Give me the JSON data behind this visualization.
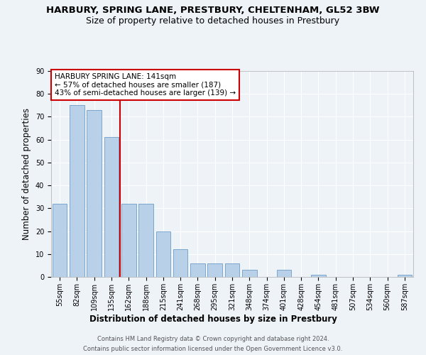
{
  "title": "HARBURY, SPRING LANE, PRESTBURY, CHELTENHAM, GL52 3BW",
  "subtitle": "Size of property relative to detached houses in Prestbury",
  "xlabel": "Distribution of detached houses by size in Prestbury",
  "ylabel": "Number of detached properties",
  "categories": [
    "55sqm",
    "82sqm",
    "109sqm",
    "135sqm",
    "162sqm",
    "188sqm",
    "215sqm",
    "241sqm",
    "268sqm",
    "295sqm",
    "321sqm",
    "348sqm",
    "374sqm",
    "401sqm",
    "428sqm",
    "454sqm",
    "481sqm",
    "507sqm",
    "534sqm",
    "560sqm",
    "587sqm"
  ],
  "values": [
    32,
    75,
    73,
    61,
    32,
    32,
    20,
    12,
    6,
    6,
    6,
    3,
    0,
    3,
    0,
    1,
    0,
    0,
    0,
    0,
    1
  ],
  "bar_color": "#b8d0e8",
  "bar_edge_color": "#5a8fc0",
  "vline_color": "#cc0000",
  "vline_x_index": 3.5,
  "annotation_line1": "HARBURY SPRING LANE: 141sqm",
  "annotation_line2": "← 57% of detached houses are smaller (187)",
  "annotation_line3": "43% of semi-detached houses are larger (139) →",
  "footnote1": "Contains HM Land Registry data © Crown copyright and database right 2024.",
  "footnote2": "Contains public sector information licensed under the Open Government Licence v3.0.",
  "ylim": [
    0,
    90
  ],
  "yticks": [
    0,
    10,
    20,
    30,
    40,
    50,
    60,
    70,
    80,
    90
  ],
  "bg_color": "#eef3f8",
  "plot_bg_color": "#eef3f8",
  "grid_color": "#ffffff",
  "title_fontsize": 9.5,
  "subtitle_fontsize": 9,
  "axis_label_fontsize": 8.5,
  "tick_fontsize": 7,
  "annotation_fontsize": 7.5,
  "footnote_fontsize": 6
}
